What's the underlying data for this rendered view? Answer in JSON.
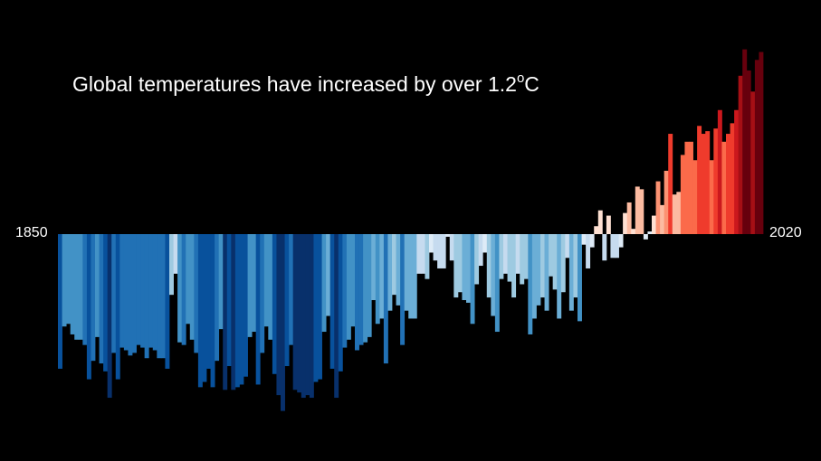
{
  "chart_data": {
    "type": "bar",
    "title_main": "Global temperatures have increased by over 1.2",
    "title_degree": "o",
    "title_unit": "C",
    "x_start_label": "1850",
    "x_end_label": "2020",
    "x_start": 1850,
    "x_end": 2020,
    "ylabel": "",
    "ylim": [
      -0.7,
      0.72
    ],
    "grid": false,
    "legend": "none",
    "values": [
      -0.51,
      -0.35,
      -0.34,
      -0.38,
      -0.4,
      -0.4,
      -0.42,
      -0.55,
      -0.48,
      -0.39,
      -0.49,
      -0.52,
      -0.62,
      -0.45,
      -0.55,
      -0.43,
      -0.44,
      -0.46,
      -0.45,
      -0.42,
      -0.43,
      -0.47,
      -0.43,
      -0.44,
      -0.47,
      -0.47,
      -0.51,
      -0.23,
      -0.15,
      -0.41,
      -0.42,
      -0.34,
      -0.4,
      -0.45,
      -0.58,
      -0.56,
      -0.51,
      -0.58,
      -0.48,
      -0.36,
      -0.59,
      -0.5,
      -0.59,
      -0.58,
      -0.57,
      -0.54,
      -0.39,
      -0.37,
      -0.57,
      -0.45,
      -0.35,
      -0.4,
      -0.53,
      -0.61,
      -0.67,
      -0.5,
      -0.42,
      -0.59,
      -0.6,
      -0.62,
      -0.61,
      -0.62,
      -0.56,
      -0.55,
      -0.37,
      -0.31,
      -0.51,
      -0.62,
      -0.52,
      -0.43,
      -0.4,
      -0.35,
      -0.44,
      -0.42,
      -0.41,
      -0.39,
      -0.25,
      -0.34,
      -0.32,
      -0.49,
      -0.29,
      -0.23,
      -0.27,
      -0.42,
      -0.29,
      -0.32,
      -0.32,
      -0.15,
      -0.15,
      -0.17,
      -0.07,
      -0.1,
      -0.13,
      -0.13,
      -0.01,
      -0.1,
      -0.24,
      -0.22,
      -0.25,
      -0.26,
      -0.34,
      -0.19,
      -0.12,
      -0.07,
      -0.24,
      -0.31,
      -0.37,
      -0.17,
      -0.15,
      -0.18,
      -0.24,
      -0.15,
      -0.19,
      -0.17,
      -0.38,
      -0.32,
      -0.27,
      -0.24,
      -0.29,
      -0.16,
      -0.21,
      -0.32,
      -0.22,
      -0.09,
      -0.29,
      -0.24,
      -0.33,
      -0.04,
      -0.13,
      -0.05,
      0.03,
      0.09,
      -0.1,
      0.07,
      -0.09,
      -0.09,
      -0.05,
      0.08,
      0.12,
      0.02,
      0.18,
      0.17,
      -0.02,
      0.01,
      0.07,
      0.2,
      0.11,
      0.24,
      0.38,
      0.15,
      0.16,
      0.3,
      0.35,
      0.35,
      0.28,
      0.41,
      0.38,
      0.39,
      0.28,
      0.4,
      0.47,
      0.35,
      0.38,
      0.42,
      0.47,
      0.6,
      0.7,
      0.62,
      0.54,
      0.66,
      0.69
    ],
    "colors": [
      "#08306b",
      "#08519c",
      "#2171b5",
      "#4292c6",
      "#6baed6",
      "#9ecae1",
      "#c6dbef",
      "#deebf7",
      "#fee0d2",
      "#fcbba1",
      "#fc9272",
      "#fb6a4a",
      "#ef3b2c",
      "#cb181d",
      "#a50f15",
      "#67000d"
    ],
    "background": "#000000"
  }
}
